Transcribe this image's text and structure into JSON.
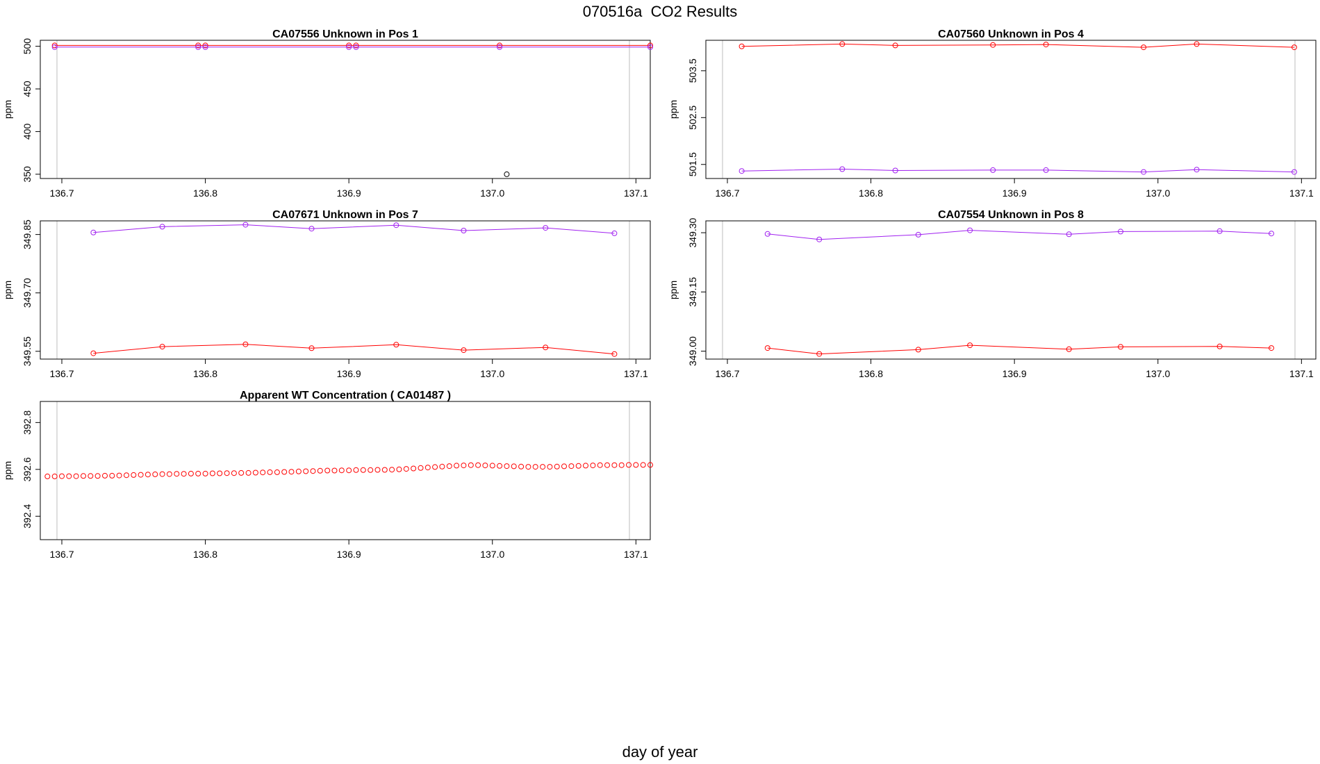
{
  "title": "070516a  CO2 Results",
  "xlabel": "day of year",
  "colors": {
    "red": "#ff0000",
    "purple": "#a020f0",
    "black": "#000000",
    "refline": "#bebebe"
  },
  "chart_data": [
    {
      "type": "line",
      "title": "CA07556    Unknown in Pos 1",
      "ylabel": "ppm",
      "xlim": [
        136.685,
        137.11
      ],
      "ylim": [
        345,
        507
      ],
      "xticks": [
        136.7,
        136.8,
        136.9,
        137.0,
        137.1
      ],
      "xtick_labels": [
        "136.7",
        "136.8",
        "136.9",
        "137.0",
        "137.1"
      ],
      "yticks": [
        350,
        400,
        450,
        500
      ],
      "ytick_labels": [
        "350",
        "400",
        "450",
        "500"
      ],
      "series": [
        {
          "color": "#ff0000",
          "x": [
            136.695,
            136.795,
            136.8,
            136.9,
            136.905,
            137.005,
            137.11
          ],
          "y": [
            501,
            501,
            501,
            501,
            501,
            501,
            501
          ]
        },
        {
          "color": "#a020f0",
          "x": [
            136.695,
            136.795,
            136.8,
            136.9,
            136.905,
            137.005,
            137.11
          ],
          "y": [
            499,
            499,
            499,
            499,
            499,
            499,
            499
          ]
        },
        {
          "color": "#000000",
          "points_only": true,
          "x": [
            137.01
          ],
          "y": [
            350
          ]
        }
      ]
    },
    {
      "type": "line",
      "title": "CA07560    Unknown in Pos 4",
      "ylabel": "ppm",
      "xlim": [
        136.685,
        137.11
      ],
      "ylim": [
        501.2,
        504.15
      ],
      "xticks": [
        136.7,
        136.8,
        136.9,
        137.0,
        137.1
      ],
      "xtick_labels": [
        "136.7",
        "136.8",
        "136.9",
        "137.0",
        "137.1"
      ],
      "yticks": [
        501.5,
        502.5,
        503.5
      ],
      "ytick_labels": [
        "501.5",
        "502.5",
        "503.5"
      ],
      "series": [
        {
          "color": "#ff0000",
          "x": [
            136.71,
            136.78,
            136.817,
            136.885,
            136.922,
            136.99,
            137.027,
            137.095
          ],
          "y": [
            504.02,
            504.07,
            504.04,
            504.05,
            504.06,
            504.0,
            504.07,
            504.0
          ]
        },
        {
          "color": "#a020f0",
          "x": [
            136.71,
            136.78,
            136.817,
            136.885,
            136.922,
            136.99,
            137.027,
            137.095
          ],
          "y": [
            501.36,
            501.4,
            501.37,
            501.38,
            501.38,
            501.34,
            501.39,
            501.34
          ]
        }
      ]
    },
    {
      "type": "line",
      "title": "CA07671    Unknown in Pos 7",
      "ylabel": "ppm",
      "xlim": [
        136.685,
        137.11
      ],
      "ylim": [
        349.53,
        349.885
      ],
      "xticks": [
        136.7,
        136.8,
        136.9,
        137.0,
        137.1
      ],
      "xtick_labels": [
        "136.7",
        "136.8",
        "136.9",
        "137.0",
        "137.1"
      ],
      "yticks": [
        349.55,
        349.7,
        349.85
      ],
      "ytick_labels": [
        "349.55",
        "349.70",
        "349.85"
      ],
      "series": [
        {
          "color": "#a020f0",
          "x": [
            136.722,
            136.77,
            136.828,
            136.874,
            136.933,
            136.98,
            137.037,
            137.085
          ],
          "y": [
            349.855,
            349.87,
            349.875,
            349.865,
            349.874,
            349.86,
            349.867,
            349.853
          ]
        },
        {
          "color": "#ff0000",
          "x": [
            136.722,
            136.77,
            136.828,
            136.874,
            136.933,
            136.98,
            137.037,
            137.085
          ],
          "y": [
            349.545,
            349.562,
            349.568,
            349.558,
            349.567,
            349.553,
            349.56,
            349.543
          ]
        }
      ]
    },
    {
      "type": "line",
      "title": "CA07554    Unknown in Pos 8",
      "ylabel": "ppm",
      "xlim": [
        136.685,
        137.11
      ],
      "ylim": [
        348.98,
        349.33
      ],
      "xticks": [
        136.7,
        136.8,
        136.9,
        137.0,
        137.1
      ],
      "xtick_labels": [
        "136.7",
        "136.8",
        "136.9",
        "137.0",
        "137.1"
      ],
      "yticks": [
        349.0,
        349.15,
        349.3
      ],
      "ytick_labels": [
        "349.00",
        "349.15",
        "349.30"
      ],
      "series": [
        {
          "color": "#a020f0",
          "x": [
            136.728,
            136.764,
            136.833,
            136.869,
            136.938,
            136.974,
            137.043,
            137.079
          ],
          "y": [
            349.297,
            349.283,
            349.295,
            349.306,
            349.296,
            349.303,
            349.304,
            349.298
          ]
        },
        {
          "color": "#ff0000",
          "x": [
            136.728,
            136.764,
            136.833,
            136.869,
            136.938,
            136.974,
            137.043,
            137.079
          ],
          "y": [
            349.008,
            348.993,
            349.004,
            349.015,
            349.005,
            349.011,
            349.012,
            349.008
          ]
        }
      ]
    },
    {
      "type": "scatter",
      "title": "Apparent WT Concentration ( CA01487 )",
      "ylabel": "ppm",
      "xlim": [
        136.685,
        137.11
      ],
      "ylim": [
        392.3,
        392.89
      ],
      "xticks": [
        136.7,
        136.8,
        136.9,
        137.0,
        137.1
      ],
      "xtick_labels": [
        "136.7",
        "136.8",
        "136.9",
        "137.0",
        "137.1"
      ],
      "yticks": [
        392.4,
        392.6,
        392.8
      ],
      "ytick_labels": [
        "392.4",
        "392.6",
        "392.8"
      ],
      "series": [
        {
          "color": "#ff0000",
          "points_only": true,
          "x": [
            136.69,
            136.695,
            136.7,
            136.705,
            136.71,
            136.715,
            136.72,
            136.725,
            136.73,
            136.735,
            136.74,
            136.745,
            136.75,
            136.755,
            136.76,
            136.765,
            136.77,
            136.775,
            136.78,
            136.785,
            136.79,
            136.795,
            136.8,
            136.805,
            136.81,
            136.815,
            136.82,
            136.825,
            136.83,
            136.835,
            136.84,
            136.845,
            136.85,
            136.855,
            136.86,
            136.865,
            136.87,
            136.875,
            136.88,
            136.885,
            136.89,
            136.895,
            136.9,
            136.905,
            136.91,
            136.915,
            136.92,
            136.925,
            136.93,
            136.935,
            136.94,
            136.945,
            136.95,
            136.955,
            136.96,
            136.965,
            136.97,
            136.975,
            136.98,
            136.985,
            136.99,
            136.995,
            137.0,
            137.005,
            137.01,
            137.015,
            137.02,
            137.025,
            137.03,
            137.035,
            137.04,
            137.045,
            137.05,
            137.055,
            137.06,
            137.065,
            137.07,
            137.075,
            137.08,
            137.085,
            137.09,
            137.095,
            137.1,
            137.105,
            137.11
          ],
          "y": [
            392.57,
            392.57,
            392.571,
            392.571,
            392.571,
            392.572,
            392.572,
            392.572,
            392.573,
            392.573,
            392.574,
            392.575,
            392.576,
            392.577,
            392.578,
            392.579,
            392.58,
            392.58,
            392.581,
            392.581,
            392.582,
            392.582,
            392.582,
            392.583,
            392.583,
            392.584,
            392.584,
            392.585,
            392.585,
            392.586,
            392.587,
            392.588,
            392.588,
            392.589,
            392.59,
            392.591,
            392.592,
            392.593,
            392.594,
            392.595,
            392.595,
            392.596,
            392.596,
            392.597,
            392.597,
            392.597,
            392.598,
            392.598,
            392.599,
            392.6,
            392.602,
            392.604,
            392.606,
            392.608,
            392.61,
            392.612,
            392.614,
            392.616,
            392.617,
            392.618,
            392.618,
            392.617,
            392.616,
            392.615,
            392.614,
            392.613,
            392.612,
            392.611,
            392.611,
            392.611,
            392.611,
            392.612,
            392.613,
            392.614,
            392.615,
            392.616,
            392.617,
            392.618,
            392.618,
            392.618,
            392.618,
            392.619,
            392.619,
            392.619,
            392.619
          ]
        }
      ]
    }
  ]
}
